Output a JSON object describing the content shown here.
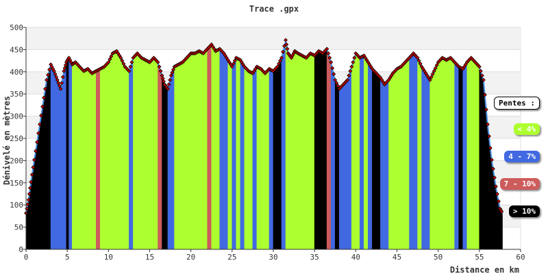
{
  "chart_data": {
    "type": "area",
    "title": "Trace .gpx",
    "xlabel": "Distance en km",
    "ylabel": "Dénivelé en mètres",
    "xlim": [
      0,
      60
    ],
    "ylim": [
      0,
      500
    ],
    "xticks": [
      0,
      5,
      10,
      15,
      20,
      25,
      30,
      35,
      40,
      45,
      50,
      55,
      60
    ],
    "yticks": [
      0,
      50,
      100,
      150,
      200,
      250,
      300,
      350,
      400,
      450,
      500
    ],
    "grid": true,
    "legend": {
      "title": "Pentes :",
      "placement": "right",
      "entries": [
        {
          "label": "< 4%",
          "color": "#adff2f",
          "text_color": "#ffffff"
        },
        {
          "label": "4 - 7%",
          "color": "#4169e1",
          "text_color": "#ffffff"
        },
        {
          "label": "7 - 10%",
          "color": "#cd5c5c",
          "text_color": "#ffffff"
        },
        {
          "label": "> 10%",
          "color": "#000000",
          "text_color": "#ffffff"
        }
      ]
    },
    "colors": {
      "lt4": "#adff2f",
      "p4_7": "#4169e1",
      "p7_10": "#cd5c5c",
      "gt10": "#000000",
      "line": "#4a8fe0",
      "marker": "#cc0000"
    },
    "x": [
      0,
      0.3,
      0.6,
      1.0,
      1.5,
      2.0,
      2.5,
      3.0,
      3.4,
      3.8,
      4.2,
      4.6,
      4.9,
      5.2,
      5.6,
      6.0,
      6.5,
      7.0,
      7.5,
      8.0,
      8.5,
      9.0,
      9.5,
      10.0,
      10.5,
      11.0,
      11.5,
      12.0,
      12.5,
      13.0,
      13.5,
      14.0,
      14.5,
      15.0,
      15.5,
      16.0,
      16.5,
      16.8,
      17.2,
      17.6,
      18.0,
      18.5,
      19.0,
      19.5,
      20.0,
      20.5,
      21.0,
      21.5,
      22.0,
      22.5,
      23.0,
      23.5,
      24.0,
      24.5,
      25.0,
      25.5,
      26.0,
      26.5,
      27.0,
      27.5,
      28.0,
      28.5,
      29.0,
      29.5,
      30.0,
      30.5,
      31.0,
      31.5,
      31.8,
      32.2,
      32.6,
      33.0,
      33.5,
      34.0,
      34.5,
      35.0,
      35.5,
      36.0,
      36.5,
      37.0,
      37.5,
      38.0,
      38.5,
      39.0,
      39.5,
      40.0,
      40.5,
      41.0,
      41.5,
      42.0,
      42.5,
      43.0,
      43.5,
      44.0,
      44.5,
      45.0,
      45.5,
      46.0,
      46.5,
      47.0,
      47.5,
      48.0,
      48.5,
      49.0,
      49.5,
      50.0,
      50.5,
      51.0,
      51.5,
      52.0,
      52.5,
      53.0,
      53.5,
      54.0,
      54.5,
      55.0,
      55.5,
      56.0,
      56.5,
      57.0,
      57.5,
      57.8
    ],
    "y": [
      80,
      110,
      150,
      200,
      260,
      320,
      380,
      415,
      400,
      380,
      360,
      400,
      420,
      430,
      415,
      420,
      410,
      400,
      405,
      395,
      400,
      405,
      410,
      420,
      440,
      445,
      430,
      410,
      400,
      430,
      440,
      430,
      425,
      420,
      430,
      420,
      390,
      370,
      360,
      390,
      410,
      415,
      420,
      430,
      440,
      440,
      445,
      440,
      450,
      460,
      445,
      450,
      440,
      425,
      410,
      430,
      425,
      410,
      400,
      395,
      410,
      405,
      395,
      405,
      400,
      410,
      430,
      470,
      440,
      430,
      445,
      440,
      435,
      430,
      440,
      435,
      445,
      440,
      450,
      420,
      380,
      360,
      370,
      380,
      410,
      440,
      430,
      435,
      420,
      405,
      395,
      385,
      370,
      380,
      395,
      405,
      410,
      420,
      430,
      440,
      430,
      410,
      395,
      380,
      400,
      420,
      430,
      425,
      430,
      420,
      410,
      405,
      420,
      430,
      420,
      410,
      380,
      280,
      200,
      140,
      90,
      80
    ],
    "slope_class": [
      "gt10",
      "gt10",
      "gt10",
      "gt10",
      "gt10",
      "gt10",
      "gt10",
      "p4_7",
      "p4_7",
      "p4_7",
      "p4_7",
      "p4_7",
      "gt10",
      "p4_7",
      "lt4",
      "lt4",
      "lt4",
      "lt4",
      "lt4",
      "lt4",
      "p7_10",
      "lt4",
      "lt4",
      "lt4",
      "lt4",
      "lt4",
      "lt4",
      "lt4",
      "p4_7",
      "lt4",
      "lt4",
      "lt4",
      "lt4",
      "lt4",
      "lt4",
      "p7_10",
      "gt10",
      "gt10",
      "p4_7",
      "p4_7",
      "lt4",
      "lt4",
      "lt4",
      "lt4",
      "lt4",
      "lt4",
      "lt4",
      "lt4",
      "p7_10",
      "lt4",
      "lt4",
      "p4_7",
      "p4_7",
      "lt4",
      "p4_7",
      "lt4",
      "p4_7",
      "lt4",
      "lt4",
      "p4_7",
      "lt4",
      "lt4",
      "lt4",
      "p4_7",
      "gt10",
      "gt10",
      "p4_7",
      "lt4",
      "lt4",
      "lt4",
      "lt4",
      "lt4",
      "lt4",
      "lt4",
      "lt4",
      "gt10",
      "gt10",
      "gt10",
      "p7_10",
      "p4_7",
      "gt10",
      "p4_7",
      "p4_7",
      "p4_7",
      "lt4",
      "lt4",
      "p4_7",
      "lt4",
      "p4_7",
      "gt10",
      "gt10",
      "p4_7",
      "p4_7",
      "lt4",
      "lt4",
      "lt4",
      "lt4",
      "lt4",
      "p4_7",
      "p4_7",
      "lt4",
      "p4_7",
      "p4_7",
      "lt4",
      "lt4",
      "lt4",
      "lt4",
      "lt4",
      "lt4",
      "p4_7",
      "gt10",
      "p4_7",
      "lt4",
      "lt4",
      "lt4",
      "gt10",
      "gt10",
      "gt10",
      "gt10",
      "gt10",
      "gt10"
    ]
  }
}
